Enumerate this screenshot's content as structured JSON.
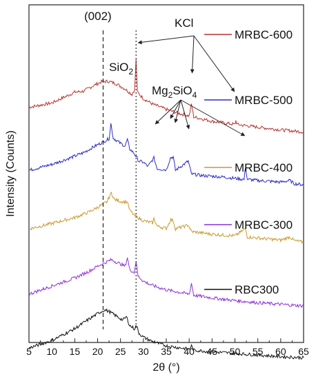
{
  "chart_data": {
    "type": "line",
    "xlabel": "2θ (°)",
    "ylabel": "Intensity (Counts)",
    "xlim": [
      5,
      65
    ],
    "xticks": [
      "5",
      "10",
      "15",
      "20",
      "25",
      "30",
      "35",
      "40",
      "45",
      "50",
      "55",
      "60",
      "65"
    ],
    "y_ticks_shown": false,
    "reference_lines": [
      {
        "x": 21.2,
        "style": "dashed",
        "label": "(002)"
      },
      {
        "x": 28.4,
        "style": "dotted",
        "label": ""
      }
    ],
    "annotations": [
      {
        "text": "(002)",
        "x": 21.2
      },
      {
        "text": "KCl",
        "points_to_x": [
          28.4,
          40.5,
          50.2
        ]
      },
      {
        "text": "SiO",
        "sub": "2",
        "x": 22.9
      },
      {
        "text": "Mg",
        "sub1": "2",
        "mid": "SiO",
        "sub2": "4",
        "points_to_x": [
          32.3,
          36.5,
          39.8,
          52.3
        ]
      }
    ],
    "series": [
      {
        "name": "MRBC-600",
        "color": "#b8322e",
        "offset": 4,
        "points": [
          [
            5,
            0.62
          ],
          [
            10,
            0.7
          ],
          [
            13,
            0.82
          ],
          [
            15,
            0.9
          ],
          [
            17,
            0.92
          ],
          [
            19,
            1.02
          ],
          [
            21,
            1.1
          ],
          [
            22.5,
            1.1
          ],
          [
            24,
            1.06
          ],
          [
            26,
            0.96
          ],
          [
            27.5,
            0.86
          ],
          [
            28.1,
            0.95
          ],
          [
            28.4,
            1.5
          ],
          [
            28.7,
            0.9
          ],
          [
            30,
            0.78
          ],
          [
            32,
            0.68
          ],
          [
            35,
            0.58
          ],
          [
            38,
            0.5
          ],
          [
            40,
            0.46
          ],
          [
            40.5,
            0.68
          ],
          [
            41,
            0.44
          ],
          [
            45,
            0.36
          ],
          [
            50,
            0.3
          ],
          [
            50.2,
            0.37
          ],
          [
            50.5,
            0.3
          ],
          [
            55,
            0.25
          ],
          [
            60,
            0.2
          ],
          [
            65,
            0.16
          ]
        ]
      },
      {
        "name": "MRBC-500",
        "color": "#2c2cc4",
        "offset": 3,
        "points": [
          [
            5,
            0.55
          ],
          [
            10,
            0.66
          ],
          [
            14,
            0.78
          ],
          [
            17,
            0.88
          ],
          [
            19,
            0.98
          ],
          [
            21,
            1.07
          ],
          [
            22.5,
            1.14
          ],
          [
            22.9,
            1.42
          ],
          [
            23.4,
            1.15
          ],
          [
            25,
            1.05
          ],
          [
            26,
            1.0
          ],
          [
            26.5,
            1.12
          ],
          [
            27,
            0.95
          ],
          [
            28,
            0.86
          ],
          [
            29,
            0.72
          ],
          [
            30,
            0.7
          ],
          [
            31,
            0.62
          ],
          [
            32.3,
            0.78
          ],
          [
            33,
            0.58
          ],
          [
            35,
            0.56
          ],
          [
            35.9,
            0.78
          ],
          [
            36.5,
            0.8
          ],
          [
            37,
            0.55
          ],
          [
            39.8,
            0.72
          ],
          [
            40.5,
            0.48
          ],
          [
            43,
            0.45
          ],
          [
            45,
            0.44
          ],
          [
            48,
            0.42
          ],
          [
            52,
            0.38
          ],
          [
            52.3,
            0.62
          ],
          [
            52.7,
            0.38
          ],
          [
            55,
            0.36
          ],
          [
            60,
            0.33
          ],
          [
            62,
            0.36
          ],
          [
            63,
            0.3
          ],
          [
            65,
            0.28
          ]
        ]
      },
      {
        "name": "MRBC-400",
        "color": "#c99a2e",
        "offset": 2,
        "points": [
          [
            5,
            0.55
          ],
          [
            10,
            0.65
          ],
          [
            15,
            0.76
          ],
          [
            18,
            0.86
          ],
          [
            20,
            0.95
          ],
          [
            22,
            1.05
          ],
          [
            23,
            1.22
          ],
          [
            23.6,
            1.1
          ],
          [
            25,
            1.06
          ],
          [
            26.5,
            1.05
          ],
          [
            27,
            0.9
          ],
          [
            28,
            0.8
          ],
          [
            30,
            0.7
          ],
          [
            32,
            0.66
          ],
          [
            32.3,
            0.74
          ],
          [
            33,
            0.6
          ],
          [
            35,
            0.56
          ],
          [
            36,
            0.72
          ],
          [
            36.5,
            0.7
          ],
          [
            37,
            0.55
          ],
          [
            39.8,
            0.62
          ],
          [
            40.5,
            0.5
          ],
          [
            45,
            0.45
          ],
          [
            50,
            0.42
          ],
          [
            52.3,
            0.55
          ],
          [
            52.7,
            0.4
          ],
          [
            55,
            0.38
          ],
          [
            60,
            0.34
          ],
          [
            62,
            0.4
          ],
          [
            63,
            0.33
          ],
          [
            65,
            0.3
          ]
        ]
      },
      {
        "name": "MRBC-300",
        "color": "#8e2fd6",
        "offset": 1,
        "points": [
          [
            5,
            0.4
          ],
          [
            10,
            0.55
          ],
          [
            15,
            0.7
          ],
          [
            18,
            0.82
          ],
          [
            20,
            0.92
          ],
          [
            22,
            1.0
          ],
          [
            23,
            1.04
          ],
          [
            24,
            1.0
          ],
          [
            25,
            0.96
          ],
          [
            26,
            0.92
          ],
          [
            26.5,
            1.08
          ],
          [
            27,
            0.86
          ],
          [
            28,
            0.8
          ],
          [
            28.4,
            1.02
          ],
          [
            28.8,
            0.74
          ],
          [
            30,
            0.64
          ],
          [
            32,
            0.56
          ],
          [
            35,
            0.48
          ],
          [
            40,
            0.4
          ],
          [
            40.5,
            0.6
          ],
          [
            41,
            0.38
          ],
          [
            45,
            0.33
          ],
          [
            50,
            0.28
          ],
          [
            55,
            0.24
          ],
          [
            60,
            0.21
          ],
          [
            65,
            0.18
          ]
        ]
      },
      {
        "name": "RBC300",
        "color": "#111111",
        "offset": 0,
        "points": [
          [
            5,
            0.32
          ],
          [
            10,
            0.46
          ],
          [
            15,
            0.68
          ],
          [
            18,
            0.85
          ],
          [
            20,
            0.96
          ],
          [
            21.5,
            1.03
          ],
          [
            22.5,
            1.0
          ],
          [
            24,
            0.92
          ],
          [
            25.5,
            0.84
          ],
          [
            26.3,
            0.9
          ],
          [
            27,
            0.74
          ],
          [
            28,
            0.68
          ],
          [
            28.5,
            0.74
          ],
          [
            29,
            0.6
          ],
          [
            30,
            0.52
          ],
          [
            32,
            0.44
          ],
          [
            35,
            0.36
          ],
          [
            40,
            0.3
          ],
          [
            40.5,
            0.36
          ],
          [
            41,
            0.28
          ],
          [
            45,
            0.25
          ],
          [
            50,
            0.22
          ],
          [
            55,
            0.19
          ],
          [
            60,
            0.16
          ],
          [
            65,
            0.14
          ]
        ]
      }
    ]
  }
}
